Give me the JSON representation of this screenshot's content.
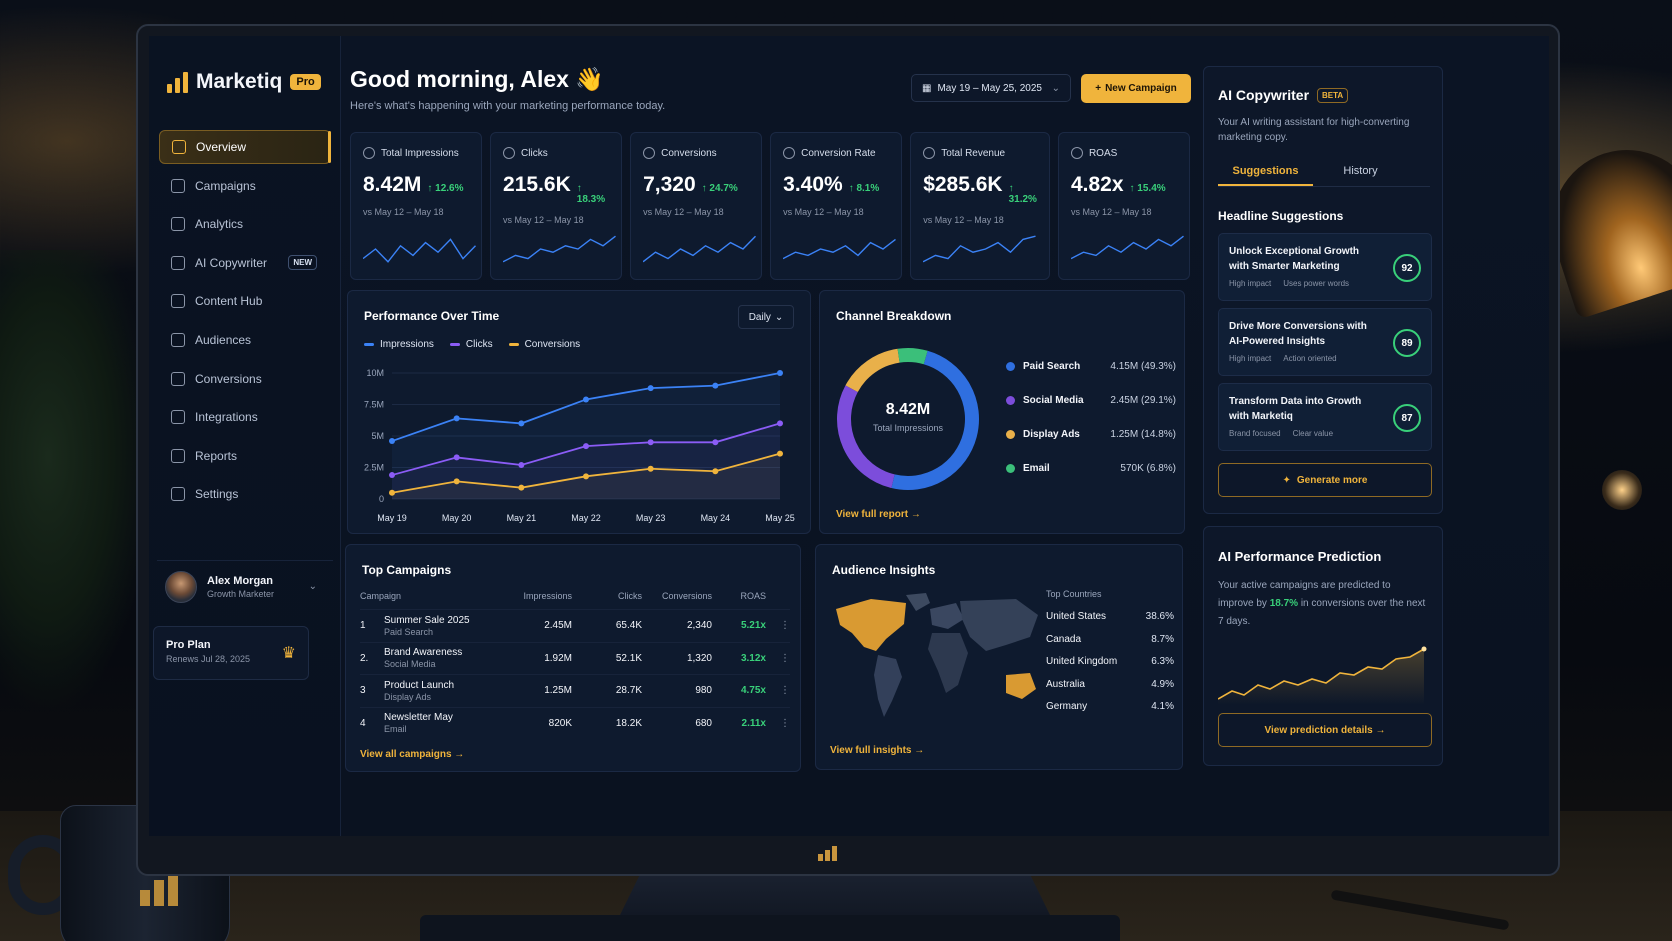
{
  "brand": {
    "name": "Marketiq",
    "badge": "Pro"
  },
  "nav": {
    "items": [
      {
        "label": "Overview",
        "icon": "grid-icon",
        "active": true
      },
      {
        "label": "Campaigns",
        "icon": "megaphone-icon"
      },
      {
        "label": "Analytics",
        "icon": "bar-chart-icon"
      },
      {
        "label": "AI Copywriter",
        "icon": "ai-pen-icon",
        "badge": "NEW"
      },
      {
        "label": "Content Hub",
        "icon": "document-icon"
      },
      {
        "label": "Audiences",
        "icon": "users-icon"
      },
      {
        "label": "Conversions",
        "icon": "target-icon"
      },
      {
        "label": "Integrations",
        "icon": "puzzle-icon"
      },
      {
        "label": "Reports",
        "icon": "report-icon"
      },
      {
        "label": "Settings",
        "icon": "gear-icon"
      }
    ]
  },
  "user": {
    "name": "Alex Morgan",
    "role": "Growth Marketer"
  },
  "plan": {
    "name": "Pro Plan",
    "renews": "Renews Jul 28, 2025"
  },
  "header": {
    "greeting": "Good morning, Alex 👋",
    "subtitle": "Here's what's happening with your marketing performance today.",
    "date_range": "May 19 – May 25, 2025",
    "new_campaign": "New Campaign"
  },
  "kpis": [
    {
      "label": "Total Impressions",
      "value": "8.42M",
      "delta": "↑ 12.6%",
      "compare": "vs May 12 – May 18",
      "icon": "eye-icon"
    },
    {
      "label": "Clicks",
      "value": "215.6K",
      "delta": "↑ 18.3%",
      "compare": "vs May 12 – May 18",
      "icon": "cursor-icon"
    },
    {
      "label": "Conversions",
      "value": "7,320",
      "delta": "↑ 24.7%",
      "compare": "vs May 12 – May 18",
      "icon": "target-icon"
    },
    {
      "label": "Conversion Rate",
      "value": "3.40%",
      "delta": "↑ 8.1%",
      "compare": "vs May 12 – May 18",
      "icon": "percent-icon"
    },
    {
      "label": "Total Revenue",
      "value": "$285.6K",
      "delta": "↑ 31.2%",
      "compare": "vs May 12 – May 18",
      "icon": "dollar-icon"
    },
    {
      "label": "ROAS",
      "value": "4.82x",
      "delta": "↑ 15.4%",
      "compare": "vs May 12 – May 18",
      "icon": "trend-icon"
    }
  ],
  "performance": {
    "title": "Performance Over Time",
    "period": "Daily",
    "chart_data": {
      "type": "line",
      "x": [
        "May 19",
        "May 20",
        "May 21",
        "May 22",
        "May 23",
        "May 24",
        "May 25"
      ],
      "yticks": [
        "0",
        "2.5M",
        "5M",
        "7.5M",
        "10M"
      ],
      "ylim": [
        0,
        10
      ],
      "series": [
        {
          "name": "Impressions",
          "color": "#3b82f6",
          "values": [
            4.6,
            6.4,
            6.0,
            7.9,
            8.8,
            9.0,
            10.0
          ]
        },
        {
          "name": "Clicks",
          "color": "#8b5cf6",
          "values": [
            1.9,
            3.3,
            2.7,
            4.2,
            4.5,
            4.5,
            6.0
          ]
        },
        {
          "name": "Conversions",
          "color": "#f0b43c",
          "values": [
            0.5,
            1.4,
            0.9,
            1.8,
            2.4,
            2.2,
            3.6
          ]
        }
      ]
    }
  },
  "channel": {
    "title": "Channel Breakdown",
    "total": "8.42M",
    "total_label": "Total Impressions",
    "link": "View full report →",
    "chart_data": {
      "type": "pie",
      "slices": [
        {
          "name": "Paid Search",
          "value": 49.3,
          "display": "4.15M (49.3%)",
          "color": "#2f6fe0"
        },
        {
          "name": "Social Media",
          "value": 29.1,
          "display": "2.45M (29.1%)",
          "color": "#7c4ddb"
        },
        {
          "name": "Display Ads",
          "value": 14.8,
          "display": "1.25M (14.8%)",
          "color": "#e9b04a"
        },
        {
          "name": "Email",
          "value": 6.8,
          "display": "570K (6.8%)",
          "color": "#3bbf7a"
        }
      ]
    }
  },
  "campaigns": {
    "title": "Top Campaigns",
    "columns": [
      "Campaign",
      "Impressions",
      "Clicks",
      "Conversions",
      "ROAS"
    ],
    "rows": [
      {
        "num": "1",
        "name": "Summer Sale 2025",
        "channel": "Paid Search",
        "impressions": "2.45M",
        "clicks": "65.4K",
        "conversions": "2,340",
        "roas": "5.21x"
      },
      {
        "num": "2.",
        "name": "Brand Awareness",
        "channel": "Social Media",
        "impressions": "1.92M",
        "clicks": "52.1K",
        "conversions": "1,320",
        "roas": "3.12x"
      },
      {
        "num": "3",
        "name": "Product Launch",
        "channel": "Display Ads",
        "impressions": "1.25M",
        "clicks": "28.7K",
        "conversions": "980",
        "roas": "4.75x"
      },
      {
        "num": "4",
        "name": "Newsletter May",
        "channel": "Email",
        "impressions": "820K",
        "clicks": "18.2K",
        "conversions": "680",
        "roas": "2.11x"
      }
    ],
    "link": "View all campaigns →"
  },
  "audience": {
    "title": "Audience Insights",
    "countries_title": "Top Countries",
    "countries": [
      {
        "name": "United States",
        "pct": "38.6%"
      },
      {
        "name": "Canada",
        "pct": "8.7%"
      },
      {
        "name": "United Kingdom",
        "pct": "6.3%"
      },
      {
        "name": "Australia",
        "pct": "4.9%"
      },
      {
        "name": "Germany",
        "pct": "4.1%"
      }
    ],
    "link": "View full insights →"
  },
  "ai": {
    "title": "AI Copywriter",
    "badge": "BETA",
    "description": "Your AI writing assistant for high-converting marketing copy.",
    "tabs": [
      "Suggestions",
      "History"
    ],
    "section": "Headline Suggestions",
    "suggestions": [
      {
        "text": "Unlock Exceptional Growth with Smarter Marketing",
        "tags": [
          "High impact",
          "Uses power words"
        ],
        "score": "92"
      },
      {
        "text": "Drive More Conversions with AI-Powered Insights",
        "tags": [
          "High impact",
          "Action oriented"
        ],
        "score": "89"
      },
      {
        "text": "Transform Data into Growth with Marketiq",
        "tags": [
          "Brand focused",
          "Clear value"
        ],
        "score": "87"
      }
    ],
    "generate": "Generate more"
  },
  "prediction": {
    "title": "AI Performance Prediction",
    "text_before": "Your active campaigns are predicted to improve by ",
    "highlight": "18.7%",
    "text_after": " in conversions over the next 7 days.",
    "button": "View prediction details →"
  }
}
